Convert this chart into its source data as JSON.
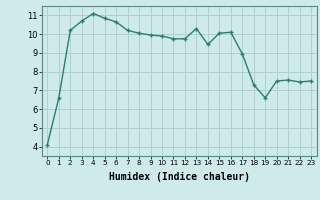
{
  "x": [
    0,
    1,
    2,
    3,
    4,
    5,
    6,
    7,
    8,
    9,
    10,
    11,
    12,
    13,
    14,
    15,
    16,
    17,
    18,
    19,
    20,
    21,
    22,
    23
  ],
  "y": [
    4.1,
    6.6,
    10.2,
    10.7,
    11.1,
    10.85,
    10.65,
    10.2,
    10.05,
    9.95,
    9.9,
    9.75,
    9.75,
    10.3,
    9.45,
    10.05,
    10.1,
    8.95,
    7.3,
    6.6,
    7.5,
    7.55,
    7.45,
    7.5
  ],
  "line_color": "#2e7d70",
  "marker": "+",
  "marker_size": 3.0,
  "linewidth": 1.0,
  "xlabel": "Humidex (Indice chaleur)",
  "xlim": [
    -0.5,
    23.5
  ],
  "ylim": [
    3.5,
    11.5
  ],
  "yticks": [
    4,
    5,
    6,
    7,
    8,
    9,
    10,
    11
  ],
  "xticks": [
    0,
    1,
    2,
    3,
    4,
    5,
    6,
    7,
    8,
    9,
    10,
    11,
    12,
    13,
    14,
    15,
    16,
    17,
    18,
    19,
    20,
    21,
    22,
    23
  ],
  "xtick_labels": [
    "0",
    "1",
    "2",
    "3",
    "4",
    "5",
    "6",
    "7",
    "8",
    "9",
    "10",
    "11",
    "12",
    "13",
    "14",
    "15",
    "16",
    "17",
    "18",
    "19",
    "20",
    "21",
    "22",
    "23"
  ],
  "background_color": "#ceeaea",
  "grid_color": "#b0d0d0",
  "spine_color": "#5a8a7a",
  "xlabel_fontsize": 7.0,
  "xlabel_fontweight": "bold",
  "xtick_fontsize": 5.2,
  "ytick_fontsize": 6.0
}
